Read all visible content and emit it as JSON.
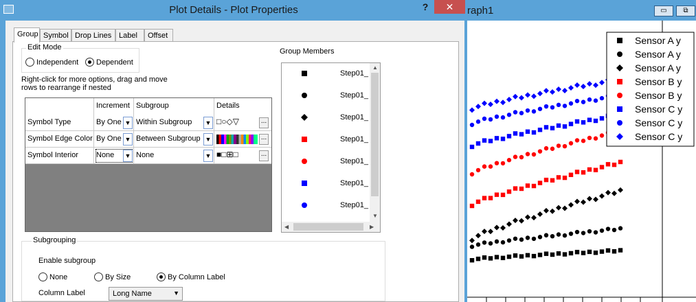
{
  "dialog": {
    "title": "Plot Details - Plot Properties",
    "help": "?",
    "close": "✕",
    "tabs": [
      "Group",
      "Symbol",
      "Drop Lines",
      "Label",
      "Offset"
    ],
    "edit_mode": {
      "label": "Edit Mode",
      "independent": "Independent",
      "dependent": "Dependent",
      "selected": "Dependent"
    },
    "hint_line1": "Right-click for more options, drag and move",
    "hint_line2": "rows to  rearrange if nested",
    "table": {
      "headers": [
        "",
        "Increment",
        "Subgroup",
        "Details"
      ],
      "rows": [
        {
          "name": "Symbol Type",
          "increment": "By One",
          "subgroup": "Within Subgroup",
          "details": "□○◇▽"
        },
        {
          "name": "Symbol Edge Color",
          "increment": "By One",
          "subgroup": "Between Subgroup",
          "details": ""
        },
        {
          "name": "Symbol Interior",
          "increment": "None",
          "subgroup": "None",
          "details": "■□⊞□"
        }
      ],
      "more": "..."
    },
    "group_members": {
      "title": "Group Members",
      "items": [
        {
          "label": "Step01_",
          "symbol": "square",
          "color": "#000000"
        },
        {
          "label": "Step01_",
          "symbol": "circle",
          "color": "#000000"
        },
        {
          "label": "Step01_",
          "symbol": "diamond",
          "color": "#000000"
        },
        {
          "label": "Step01_",
          "symbol": "square",
          "color": "#ff0000"
        },
        {
          "label": "Step01_",
          "symbol": "circle",
          "color": "#ff0000"
        },
        {
          "label": "Step01_",
          "symbol": "square",
          "color": "#0000ff"
        },
        {
          "label": "Step01_",
          "symbol": "circle",
          "color": "#0000ff"
        }
      ]
    },
    "subgrouping": {
      "label": "Subgrouping",
      "enable": "Enable subgroup",
      "none": "None",
      "by_size": "By Size",
      "by_column_label": "By Column Label",
      "selected": "By Column Label",
      "column_label": "Column Label",
      "column_label_value": "Long Name"
    }
  },
  "graph": {
    "title": "raph1",
    "minimize": "▭",
    "restore": "⧉",
    "legend": [
      {
        "label": "Sensor A y",
        "symbol": "square",
        "color": "#000000"
      },
      {
        "label": "Sensor A y",
        "symbol": "circle",
        "color": "#000000"
      },
      {
        "label": "Sensor A y",
        "symbol": "diamond",
        "color": "#000000"
      },
      {
        "label": "Sensor B y",
        "symbol": "square",
        "color": "#ff0000"
      },
      {
        "label": "Sensor B y",
        "symbol": "circle",
        "color": "#ff0000"
      },
      {
        "label": "Sensor C y",
        "symbol": "square",
        "color": "#0000ff"
      },
      {
        "label": "Sensor C y",
        "symbol": "circle",
        "color": "#0000ff"
      },
      {
        "label": "Sensor C y",
        "symbol": "diamond",
        "color": "#0000ff"
      }
    ]
  }
}
